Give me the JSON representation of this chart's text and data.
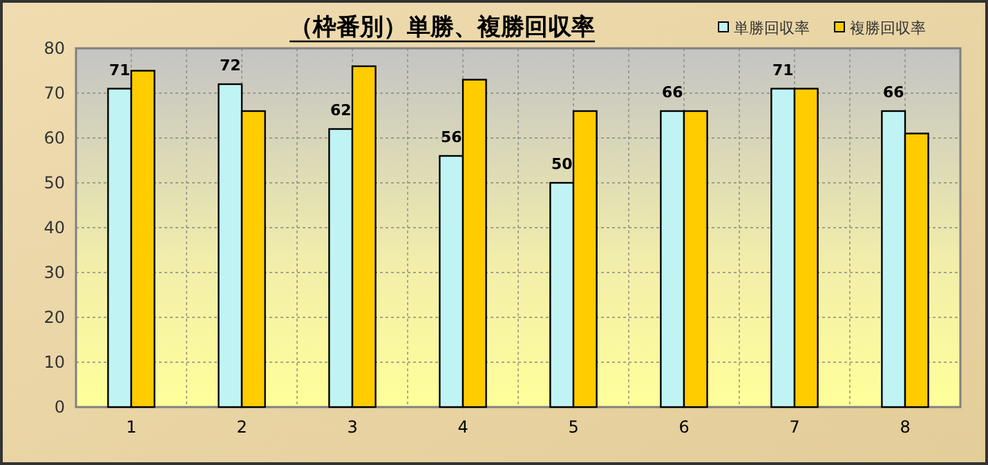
{
  "chart_data": {
    "type": "bar",
    "title": "（枠番別）単勝、複勝回収率",
    "categories": [
      "1",
      "2",
      "3",
      "4",
      "5",
      "6",
      "7",
      "8"
    ],
    "series": [
      {
        "name": "単勝回収率",
        "color": "#c0f4f4",
        "values": [
          71,
          72,
          62,
          56,
          50,
          66,
          71,
          66
        ],
        "value_labels": [
          "71",
          "72",
          "62",
          "56",
          "50",
          "66",
          "71",
          "66"
        ]
      },
      {
        "name": "複勝回収率",
        "color": "#ffcc00",
        "values": [
          75,
          66,
          76,
          73,
          66,
          66,
          71,
          61
        ]
      }
    ],
    "ylim": [
      0,
      80
    ],
    "yticks": [
      0,
      10,
      20,
      30,
      40,
      50,
      60,
      70,
      80
    ],
    "grid": true,
    "legend": "top right"
  }
}
